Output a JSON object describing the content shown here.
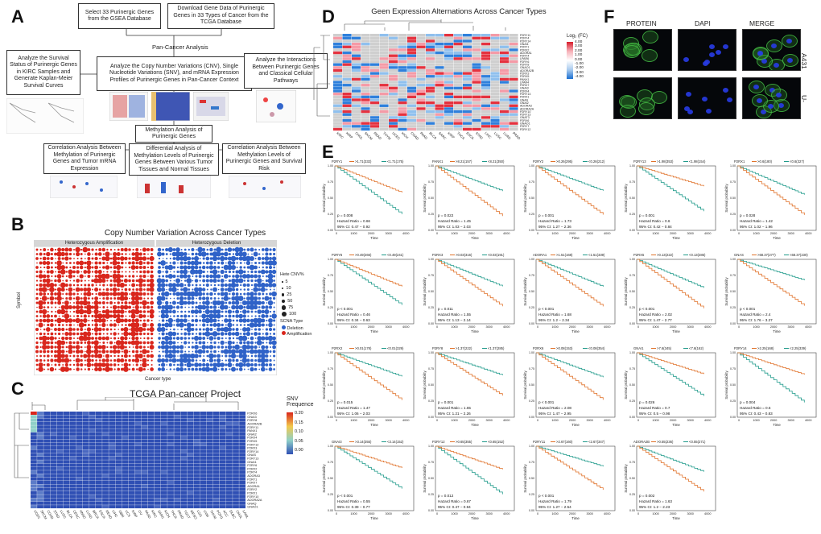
{
  "panel_a": {
    "label": "A",
    "box_select": "Select 33 Purinergic Genes from the GSEA Database",
    "box_download": "Download Gene Data of Purinergic Genes in 33 Types of Cancer from the TCGA Database",
    "pan_cancer": "Pan-Cancer Analysis",
    "box_center": "Analyze the Copy Number Variations (CNV), Single Nucleotide Variations (SNV), and mRNA Expression Profiles of Purinergic Genes in Pan-Cancer Context",
    "box_left": "Analyze the Survival Status of Purinergic Genes in KIRC Samples and Generate Kaplan-Meier Survival Curves",
    "box_right": "Analyze the Interactions Between Purinergic Genes and Classical Cellular Pathways",
    "box_methyl": "Methylation Analysis of Purinergic Genes",
    "box_corr1": "Correlation Analysis Between Methylation of Purinergic Genes and Tumor mRNA Expression",
    "box_diff": "Differential Analysis of Methylation Levels of Purinergic Genes Between Various Tumor Tissues and Normal Tissues",
    "box_corr2": "Correlation Analysis Between Methylation Levels of Purinergic Genes and Survival Risk"
  },
  "panel_b": {
    "label": "B",
    "title": "Copy Number Variation Across Cancer Types",
    "strip_amp": "Heterozygous Amplification",
    "strip_del": "Heterozygous Deletion",
    "xlabel": "Cancer type",
    "ylabel": "Symbol",
    "legend_size_title": "Hete CNV%",
    "legend_sizes": [
      "5",
      "10",
      "25",
      "50",
      "75",
      "100"
    ],
    "legend_type_title": "SCNA Type",
    "legend_types": [
      "Deletion",
      "Amplification"
    ],
    "colors": {
      "amp": "#d9261c",
      "del": "#2f62c8"
    }
  },
  "panel_c": {
    "label": "C",
    "title": "TCGA Pan-cancer Project",
    "legend_title": "SNV Frequence",
    "legend_ticks": [
      "0.20",
      "0.15",
      "0.10",
      "0.05",
      "0.00"
    ],
    "genes": [
      "P2RX6",
      "GNAI3",
      "P2RY8",
      "ADORA2B",
      "P2RY11",
      "PANX1",
      "GNAI2",
      "P2RX4",
      "P2RX5",
      "P2RY12",
      "P2RX3",
      "P2RY14",
      "GNAS",
      "P2RY13",
      "GNAI1",
      "P2RY6",
      "P2RX2",
      "P2RY4",
      "ADORA3",
      "P2RY1",
      "P2RX7",
      "ADORA1",
      "P2RY2",
      "P2RX1",
      "P2RY10",
      "ADORA2A",
      "GNAQ",
      "GNAO1"
    ],
    "cancers": [
      "UCEC",
      "SKCM",
      "COAD",
      "STAD",
      "LUSC",
      "BLCA",
      "CESC",
      "HNSC",
      "LUAD",
      "BRCA",
      "ESCA",
      "READ",
      "LIHC",
      "GBM",
      "UCS",
      "KIRP",
      "OV",
      "PAAD",
      "KIRC",
      "SARC",
      "KICH",
      "THCA",
      "PRAD",
      "TGCT",
      "MESO",
      "LGG",
      "UVM",
      "THYM",
      "PCPG",
      "ACC",
      "DLBC",
      "CHOL",
      "LAML"
    ]
  },
  "panel_d": {
    "label": "D",
    "title": "Geen Expression Alternations Across Cancer Types",
    "legend_title": "Log₂ (FC)",
    "legend_ticks": [
      "4.00",
      "3.00",
      "2.00",
      "1.00",
      "0.00",
      "-1.00",
      "-2.00",
      "-3.00",
      "-4.00"
    ],
    "genes": [
      "P2RY11",
      "P2RY4",
      "P2RY14",
      "GNAI1",
      "P2RY1",
      "P2RX2",
      "ADORA1",
      "P2RY4",
      "LPAR6",
      "P2RY6",
      "P2RY8",
      "GNAO1",
      "ADORA2B",
      "P2RX3",
      "P2RX5",
      "PANX1",
      "LPAR4",
      "P2RX7",
      "GNAI3",
      "P2RX4",
      "P2RY13",
      "P2RX1",
      "GNAS",
      "GNAI2",
      "ADORA3",
      "ADORA2A",
      "P2RY10",
      "P2RY13",
      "GNAT3",
      "P2RX6",
      "GNAO1",
      "P2RY7",
      "P2RY12"
    ],
    "cancers": [
      "KIRC",
      "KIRP",
      "CHOL",
      "SKCM",
      "READ",
      "THYM",
      "UCEC",
      "KICH",
      "COAD",
      "PAAD",
      "BLCA",
      "SARC",
      "KIRP",
      "THCA",
      "ESCA",
      "STAD",
      "LIHC",
      "LUSC",
      "LUAD",
      "PRAD"
    ]
  },
  "panel_e": {
    "label": "E",
    "xlabel": "Time",
    "ylabel": "Survival probability",
    "x_ticks": [
      "0",
      "1000",
      "2000",
      "3000",
      "4000"
    ],
    "y_ticks": [
      "0.00",
      "0.25",
      "0.50",
      "0.75",
      "1.00"
    ],
    "colors": {
      "low": "#1f9a8a",
      "high": "#e0722a"
    },
    "plots": [
      {
        "gene": "P2RY1",
        "high": ">1.71(332)",
        "low": "<1.71(175)",
        "p": "p = 0.008",
        "hr": "Hazard Ratio = 0.66",
        "ci": "95% CI: 0.47 − 0.92",
        "w": "low"
      },
      {
        "gene": "PANX1",
        "high": ">8.21(157)",
        "low": "<8.21(350)",
        "p": "p = 0.022",
        "hr": "Hazard Ratio = 1.45",
        "ci": "95% CI: 1.03 − 2.03",
        "w": "high"
      },
      {
        "gene": "P2RY2",
        "high": ">0.26(295)",
        "low": "<0.26(212)",
        "p": "p = 0.001",
        "hr": "Hazard Ratio = 1.73",
        "ci": "95% CI: 1.27 − 2.36",
        "w": "high"
      },
      {
        "gene": "P2RY13",
        "high": ">1.98(353)",
        "low": "<1.98(154)",
        "p": "p = 0.001",
        "hr": "Hazard Ratio = 0.6",
        "ci": "95% CI: 0.42 − 0.84",
        "w": "low"
      },
      {
        "gene": "P2RX1",
        "high": ">0.6(180)",
        "low": "<0.6(327)",
        "p": "p = 0.028",
        "hr": "Hazard Ratio = 1.42",
        "ci": "95% CI: 1.02 − 1.96",
        "w": "high"
      },
      {
        "gene": "P2RY6",
        "high": ">0.49(266)",
        "low": "<0.49(241)",
        "p": "p < 0.001",
        "hr": "Hazard Ratio = 0.46",
        "ci": "95% CI: 0.34 − 0.63",
        "w": "low"
      },
      {
        "gene": "P2RX3",
        "high": ">0.03(316)",
        "low": "<0.03(191)",
        "p": "p = 0.011",
        "hr": "Hazard Ratio = 1.55",
        "ci": "95% CI: 1.13 − 2.14",
        "w": "high"
      },
      {
        "gene": "ADORA1",
        "high": ">1.51(168)",
        "low": "<1.51(339)",
        "p": "p < 0.001",
        "hr": "Hazard Ratio = 1.68",
        "ci": "95% CI: 1.2 − 2.34",
        "w": "high"
      },
      {
        "gene": "P2RX5",
        "high": ">0.13(222)",
        "low": "<0.13(285)",
        "p": "p < 0.001",
        "hr": "Hazard Ratio = 2.02",
        "ci": "95% CI: 1.47 − 2.77",
        "w": "high"
      },
      {
        "gene": "GNAS",
        "high": ">68.37(277)",
        "low": "<68.37(230)",
        "p": "p < 0.001",
        "hr": "Hazard Ratio = 2.4",
        "ci": "95% CI: 1.76 − 3.27",
        "w": "high"
      },
      {
        "gene": "P2RX2",
        "high": ">0.01(178)",
        "low": "<0.01(329)",
        "p": "p = 0.015",
        "hr": "Hazard Ratio = 1.47",
        "ci": "95% CI: 1.06 − 2.03",
        "w": "high"
      },
      {
        "gene": "P2RY8",
        "high": ">1.37(222)",
        "low": "<1.37(285)",
        "p": "p = 0.001",
        "hr": "Hazard Ratio = 1.65",
        "ci": "95% CI: 1.21 − 2.26",
        "w": "high"
      },
      {
        "gene": "P2RX6",
        "high": ">0.08(153)",
        "low": "<0.08(354)",
        "p": "p < 0.001",
        "hr": "Hazard Ratio = 2.08",
        "ci": "95% CI: 1.47 − 2.95",
        "w": "high"
      },
      {
        "gene": "GNAI1",
        "high": ">7.6(345)",
        "low": "<7.6(162)",
        "p": "p = 0.026",
        "hr": "Hazard Ratio = 0.7",
        "ci": "95% CI: 0.5 − 0.98",
        "w": "low"
      },
      {
        "gene": "P2RY14",
        "high": ">2.25(168)",
        "low": "<2.25(339)",
        "p": "p = 0.004",
        "hr": "Hazard Ratio = 0.6",
        "ci": "95% CI: 0.43 − 0.83",
        "w": "low"
      },
      {
        "gene": "GNAI3",
        "high": ">3.14(355)",
        "low": "<3.14(152)",
        "p": "p < 0.001",
        "hr": "Hazard Ratio = 0.55",
        "ci": "95% CI: 0.39 − 0.77",
        "w": "low"
      },
      {
        "gene": "P2RY12",
        "high": ">0.65(355)",
        "low": "<0.65(152)",
        "p": "p = 0.012",
        "hr": "Hazard Ratio = 0.67",
        "ci": "95% CI: 0.47 − 0.94",
        "w": "low"
      },
      {
        "gene": "P2RY11",
        "high": ">2.67(160)",
        "low": "<2.67(347)",
        "p": "p < 0.001",
        "hr": "Hazard Ratio = 1.79",
        "ci": "95% CI: 1.27 − 2.54",
        "w": "high"
      },
      {
        "gene": "ADORA2B",
        "high": ">0.55(236)",
        "low": "<0.55(271)",
        "p": "p = 0.002",
        "hr": "Hazard Ratio = 1.63",
        "ci": "95% CI: 1.2 − 2.23",
        "w": "high"
      }
    ]
  },
  "panel_f": {
    "label": "F",
    "col_protein": "PROTEIN",
    "col_dapi": "DAPI",
    "col_merge": "MERGE",
    "row1": "A431",
    "row2": "U-2-OS"
  }
}
